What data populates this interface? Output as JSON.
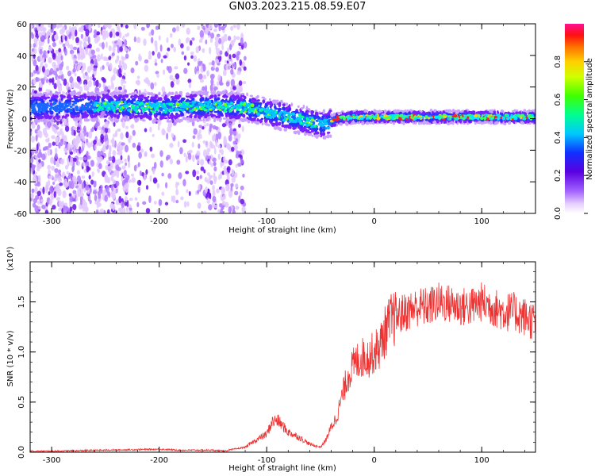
{
  "title": "GN03.2023.215.08.59.E07",
  "colors": {
    "snr_line": "#ee3333",
    "axes": "#000000",
    "background": "#ffffff"
  },
  "chart_data": [
    {
      "type": "heatmap",
      "xlabel": "Height of straight line (km)",
      "ylabel": "Frequency (Hz)",
      "xlim": [
        -320,
        150
      ],
      "ylim": [
        -60,
        60
      ],
      "xticks": [
        "-300",
        "-200",
        "-100",
        "0",
        "100"
      ],
      "yticks": [
        "-60",
        "-40",
        "-20",
        "0",
        "20",
        "40",
        "60"
      ],
      "colorbar": {
        "label": "Normalized spectral amplitude",
        "range": [
          0,
          1
        ],
        "ticks": [
          "0.0",
          "0.2",
          "0.4",
          "0.6",
          "0.8"
        ],
        "colormap": "rainbow"
      },
      "ridge": [
        {
          "x": -320,
          "y": 7
        },
        {
          "x": -250,
          "y": 8
        },
        {
          "x": -200,
          "y": 7
        },
        {
          "x": -150,
          "y": 8
        },
        {
          "x": -120,
          "y": 7
        },
        {
          "x": -100,
          "y": 4
        },
        {
          "x": -80,
          "y": 1
        },
        {
          "x": -60,
          "y": -2
        },
        {
          "x": -45,
          "y": -4
        },
        {
          "x": -35,
          "y": 0
        },
        {
          "x": -20,
          "y": 1
        },
        {
          "x": 0,
          "y": 1
        },
        {
          "x": 150,
          "y": 1
        }
      ]
    },
    {
      "type": "line",
      "xlabel": "Height of straight line (km)",
      "ylabel": "SNR (10 * v/v)",
      "yscale_label": "(x10⁴)",
      "xlim": [
        -320,
        150
      ],
      "ylim": [
        0,
        1.9
      ],
      "xticks": [
        "-300",
        "-200",
        "-100",
        "0",
        "100"
      ],
      "yticks": [
        "0.0",
        "0.5",
        "1.0",
        "1.5"
      ],
      "series": [
        {
          "x": [
            -320,
            -300,
            -250,
            -200,
            -180,
            -150,
            -140,
            -120,
            -110,
            -100,
            -95,
            -90,
            -80,
            -70,
            -60,
            -50,
            -45,
            -40,
            -35,
            -30,
            -25,
            -20,
            -15,
            -10,
            -5,
            0,
            5,
            10,
            15,
            20,
            30,
            40,
            50,
            60,
            70,
            80,
            90,
            100,
            110,
            120,
            130,
            140,
            150
          ],
          "y": [
            0.01,
            0.01,
            0.02,
            0.03,
            0.02,
            0.02,
            0.01,
            0.05,
            0.12,
            0.18,
            0.3,
            0.32,
            0.2,
            0.15,
            0.08,
            0.05,
            0.12,
            0.25,
            0.35,
            0.55,
            0.75,
            0.85,
            0.92,
            0.95,
            0.95,
            1.0,
            1.05,
            1.2,
            1.3,
            1.35,
            1.4,
            1.45,
            1.45,
            1.5,
            1.48,
            1.45,
            1.45,
            1.5,
            1.45,
            1.4,
            1.4,
            1.35,
            1.3
          ]
        }
      ]
    }
  ]
}
